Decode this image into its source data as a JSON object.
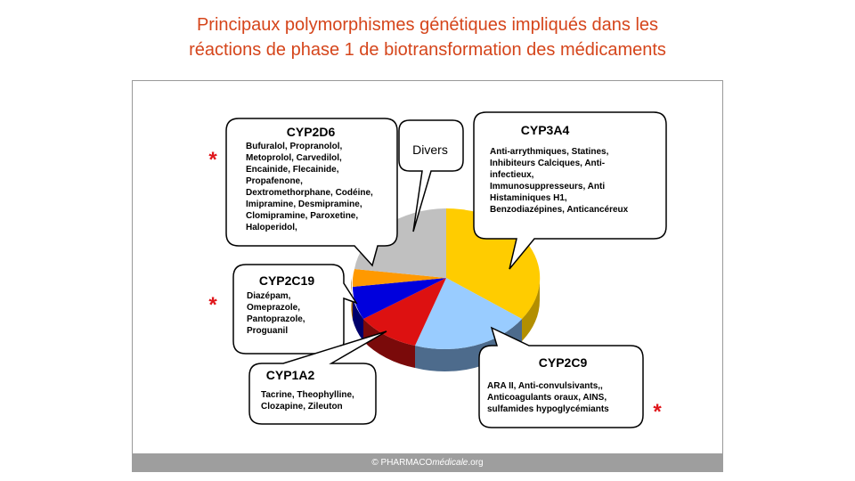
{
  "title": {
    "line1": "Principaux polymorphismes génétiques impliqués dans les",
    "line2": "réactions de phase 1 de biotransformation des médicaments"
  },
  "footer": {
    "prefix": "© PHARMACO",
    "italic": "médicale",
    "suffix": ".org"
  },
  "asterisk": "*",
  "callouts": {
    "cyp2d6": {
      "title": "CYP2D6",
      "lines": [
        "Bufuralol, Propranolol,",
        "Metoprolol, Carvedilol,",
        "Encainide, Flecainide,",
        "Propafenone,",
        "Dextromethorphane, Codéine,",
        "Imipramine, Desmipramine,",
        "Clomipramine, Paroxetine,",
        "Haloperidol,"
      ]
    },
    "divers": {
      "title": "Divers"
    },
    "cyp3a4": {
      "title": "CYP3A4",
      "lines": [
        "Anti-arrythmiques, Statines,",
        "Inhibiteurs Calciques, Anti-",
        "infectieux,",
        "Immunosuppresseurs, Anti",
        "Histaminiques H1,",
        "Benzodiazépines, Anticancéreux"
      ]
    },
    "cyp2c19": {
      "title": "CYP2C19",
      "lines": [
        "Diazépam,",
        "Omeprazole,",
        "Pantoprazole,",
        "Proguanil"
      ]
    },
    "cyp1a2": {
      "title": "CYP1A2",
      "lines": [
        "Tacrine, Theophylline,",
        "Clozapine, Zileuton"
      ]
    },
    "cyp2c9": {
      "title": "CYP2C9",
      "lines": [
        "ARA II, Anti-convulsivants,,",
        "Anticoagulants oraux, AINS,",
        "sulfamides hypoglycémiants"
      ]
    }
  },
  "colors": {
    "title": "#d5451b",
    "asterisk": "#e0161b",
    "cyp3a4": "#ffcc00",
    "cyp2c9": "#99ccff",
    "cyp1a2": "#dd1111",
    "cyp2c19": "#0000dd",
    "orange": "#ff9900",
    "divers": "#c0c0c0"
  }
}
